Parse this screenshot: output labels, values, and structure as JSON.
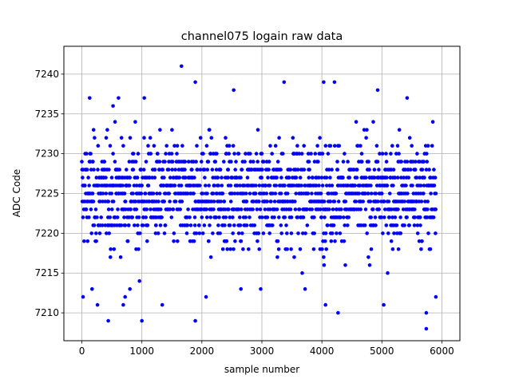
{
  "chart_data": {
    "type": "scatter",
    "title": "channel075 logain raw data",
    "xlabel": "sample number",
    "ylabel": "ADC Code",
    "xlim": [
      -300,
      6300
    ],
    "ylim": [
      7206.5,
      7243.5
    ],
    "x_ticks": [
      0,
      1000,
      2000,
      3000,
      4000,
      5000,
      6000
    ],
    "y_ticks": [
      7210,
      7215,
      7220,
      7225,
      7230,
      7235,
      7240
    ],
    "grid": true,
    "legend": "none",
    "marker_color": "#0000ff",
    "sample_count": 6000,
    "x_range": [
      0,
      5900
    ],
    "y_center": 7225,
    "dense_band": [
      7217,
      7231
    ],
    "outliers": [
      [
        20,
        7212
      ],
      [
        130,
        7237
      ],
      [
        170,
        7213
      ],
      [
        260,
        7211
      ],
      [
        440,
        7209
      ],
      [
        520,
        7236
      ],
      [
        610,
        7237
      ],
      [
        690,
        7211
      ],
      [
        720,
        7212
      ],
      [
        800,
        7213
      ],
      [
        960,
        7214
      ],
      [
        1000,
        7209
      ],
      [
        1040,
        7237
      ],
      [
        1340,
        7211
      ],
      [
        1660,
        7241
      ],
      [
        1890,
        7209
      ],
      [
        1890,
        7239
      ],
      [
        2070,
        7212
      ],
      [
        2530,
        7238
      ],
      [
        2650,
        7213
      ],
      [
        2980,
        7213
      ],
      [
        3370,
        7239
      ],
      [
        3720,
        7213
      ],
      [
        4030,
        7239
      ],
      [
        4060,
        7211
      ],
      [
        4210,
        7239
      ],
      [
        4270,
        7210
      ],
      [
        4930,
        7238
      ],
      [
        5030,
        7211
      ],
      [
        5420,
        7237
      ],
      [
        5740,
        7208
      ],
      [
        5740,
        7210
      ],
      [
        5900,
        7212
      ]
    ]
  }
}
